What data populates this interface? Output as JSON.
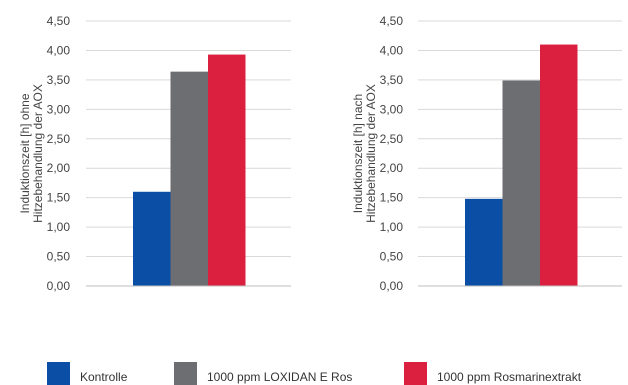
{
  "chart_data": [
    {
      "type": "bar",
      "ylabel_lines": [
        "Induktionszeit [h] ohne",
        "Hitzebehandlung der AOX"
      ],
      "ylim": [
        0,
        4.5
      ],
      "yticks": [
        "0,00",
        "0,50",
        "1,00",
        "1,50",
        "2,00",
        "2,50",
        "3,00",
        "3,50",
        "4,00",
        "4,50"
      ],
      "grid": true,
      "series": [
        {
          "name": "Kontrolle",
          "values": [
            1.6
          ]
        },
        {
          "name": "1000 ppm LOXIDAN E Ros",
          "values": [
            3.64
          ]
        },
        {
          "name": "1000 ppm Rosmarinextrakt",
          "values": [
            3.93
          ]
        }
      ]
    },
    {
      "type": "bar",
      "ylabel_lines": [
        "Induktionszeit [h] nach",
        "Hitzebehandlung der AOX"
      ],
      "ylim": [
        0,
        4.5
      ],
      "yticks": [
        "0,00",
        "0,50",
        "1,00",
        "1,50",
        "2,00",
        "2,50",
        "3,00",
        "3,50",
        "4,00",
        "4,50"
      ],
      "grid": true,
      "series": [
        {
          "name": "Kontrolle",
          "values": [
            1.48
          ]
        },
        {
          "name": "1000 ppm LOXIDAN E Ros",
          "values": [
            3.49
          ]
        },
        {
          "name": "1000 ppm Rosmarinextrakt",
          "values": [
            4.1
          ]
        }
      ]
    }
  ],
  "colors": {
    "kontrolle": "#0a4fa5",
    "loxidan": "#6d6e71",
    "rosmarin": "#db1f3e",
    "grid": "#d9d9d9",
    "axis_text": "#444444"
  },
  "legend": [
    {
      "label": "Kontrolle",
      "color": "#0a4fa5"
    },
    {
      "label": "1000 ppm LOXIDAN E Ros",
      "color": "#6d6e71"
    },
    {
      "label": "1000 ppm Rosmarinextrakt",
      "color": "#db1f3e"
    }
  ]
}
